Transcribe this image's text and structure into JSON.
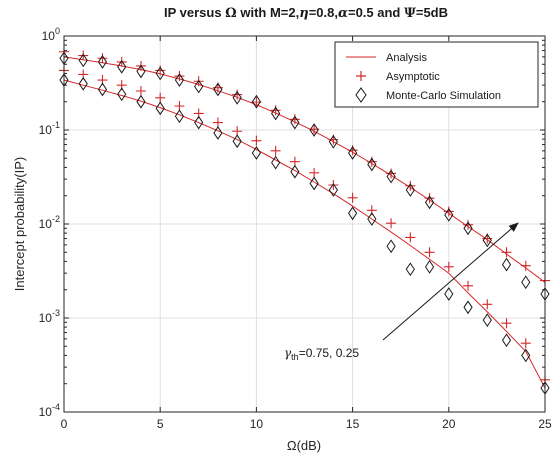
{
  "chart_data": {
    "type": "line",
    "title": {
      "p1": "IP versus ",
      "p2": "Ω",
      "p3": " with M=2,",
      "p4": "η",
      "p5": "=0.8,",
      "p6": "α",
      "p7": "=0.5 and ",
      "p8": "Ψ",
      "p9": "=5dB"
    },
    "xlabel": "Ω(dB)",
    "ylabel": "Intercept probability(IP)",
    "xlim": [
      0,
      25
    ],
    "ylim": [
      0.0001,
      1
    ],
    "y_scale": "log",
    "grid": true,
    "x_ticks": [
      0,
      5,
      10,
      15,
      20,
      25
    ],
    "y_ticks": [
      {
        "value": 0.0001,
        "base": "10",
        "exp": "-4"
      },
      {
        "value": 0.001,
        "base": "10",
        "exp": "-3"
      },
      {
        "value": 0.01,
        "base": "10",
        "exp": "-2"
      },
      {
        "value": 0.1,
        "base": "10",
        "exp": "-1"
      },
      {
        "value": 1,
        "base": "10",
        "exp": "0"
      }
    ],
    "legend": {
      "placement": "top-right",
      "entries": [
        {
          "label": "Analysis",
          "marker": "line",
          "color": "#d62728"
        },
        {
          "label": "Asymptotic",
          "marker": "plus",
          "color": "#d62728"
        },
        {
          "label": "Monte-Carlo Simulation",
          "marker": "diamond",
          "color": "#1a1a1a"
        }
      ]
    },
    "annotation": {
      "symbol": "γ",
      "subscript": "th",
      "text": "=0.75, 0.25"
    },
    "x": [
      0,
      1,
      2,
      3,
      4,
      5,
      6,
      7,
      8,
      9,
      10,
      11,
      12,
      13,
      14,
      15,
      16,
      17,
      18,
      19,
      20,
      21,
      22,
      23,
      24,
      25
    ],
    "series": [
      {
        "analysis": [
          0.6,
          0.56,
          0.52,
          0.48,
          0.44,
          0.395,
          0.35,
          0.305,
          0.262,
          0.223,
          0.186,
          0.152,
          0.122,
          0.097,
          0.075,
          0.058,
          0.044,
          0.033,
          0.0245,
          0.018,
          0.013,
          0.0094,
          0.0068,
          0.0048,
          0.0034,
          0.0024
        ],
        "asymptotic": [
          0.68,
          0.62,
          0.58,
          0.53,
          0.48,
          0.43,
          0.375,
          0.33,
          0.282,
          0.238,
          0.198,
          0.162,
          0.13,
          0.102,
          0.079,
          0.061,
          0.046,
          0.0345,
          0.0255,
          0.0188,
          0.0136,
          0.0098,
          0.007,
          0.005,
          0.0036,
          0.0025
        ],
        "simulation": [
          0.58,
          0.55,
          0.53,
          0.47,
          0.42,
          0.4,
          0.34,
          0.29,
          0.27,
          0.22,
          0.2,
          0.15,
          0.12,
          0.1,
          0.075,
          0.057,
          0.043,
          0.032,
          0.023,
          0.017,
          0.0125,
          0.009,
          0.0067,
          0.0037,
          0.0024,
          0.0018
        ]
      },
      {
        "analysis": [
          0.34,
          0.3,
          0.265,
          0.233,
          0.203,
          0.173,
          0.145,
          0.12,
          0.098,
          0.079,
          0.062,
          0.048,
          0.037,
          0.028,
          0.021,
          0.0155,
          0.0113,
          0.0082,
          0.0059,
          0.0042,
          0.003,
          0.00185,
          0.00116,
          0.00072,
          0.00044,
          0.00018
        ],
        "asymptotic": [
          0.43,
          0.39,
          0.34,
          0.3,
          0.26,
          0.22,
          0.18,
          0.15,
          0.12,
          0.097,
          0.077,
          0.06,
          0.046,
          0.035,
          0.026,
          0.019,
          0.014,
          0.0102,
          0.0072,
          0.005,
          0.0035,
          0.0022,
          0.0014,
          0.00088,
          0.00054,
          0.00022
        ],
        "simulation": [
          0.34,
          0.31,
          0.27,
          0.24,
          0.2,
          0.17,
          0.14,
          0.12,
          0.093,
          0.076,
          0.057,
          0.045,
          0.036,
          0.027,
          0.023,
          0.013,
          0.0113,
          0.0058,
          0.0033,
          0.0035,
          0.0018,
          0.0013,
          0.00095,
          0.00058,
          0.0004,
          0.00018
        ]
      }
    ]
  }
}
